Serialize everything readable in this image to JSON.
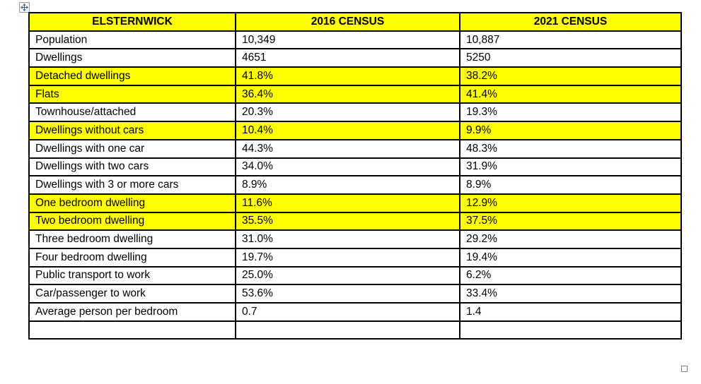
{
  "page": {
    "background_color": "#ffffff",
    "highlight_color": "#ffff00",
    "border_color": "#000000",
    "move_icon_color": "#2e5fa3"
  },
  "table": {
    "header": {
      "col1": "ELSTERNWICK",
      "col2": "2016 CENSUS",
      "col3": "2021 CENSUS"
    },
    "rows": [
      {
        "label": "Population",
        "v2016": "10,349",
        "v2021": "10,887",
        "highlighted": false
      },
      {
        "label": "Dwellings",
        "v2016": "4651",
        "v2021": "5250",
        "highlighted": false
      },
      {
        "label": "Detached dwellings",
        "v2016": "41.8%",
        "v2021": "38.2%",
        "highlighted": true
      },
      {
        "label": "Flats",
        "v2016": "36.4%",
        "v2021": "41.4%",
        "highlighted": true
      },
      {
        "label": "Townhouse/attached",
        "v2016": "20.3%",
        "v2021": "19.3%",
        "highlighted": false
      },
      {
        "label": "Dwellings without cars",
        "v2016": "10.4%",
        "v2021": "9.9%",
        "highlighted": true
      },
      {
        "label": "Dwellings with one car",
        "v2016": "44.3%",
        "v2021": "48.3%",
        "highlighted": false
      },
      {
        "label": "Dwellings with two cars",
        "v2016": "34.0%",
        "v2021": "31.9%",
        "highlighted": false
      },
      {
        "label": "Dwellings with 3 or more cars",
        "v2016": "8.9%",
        "v2021": "8.9%",
        "highlighted": false
      },
      {
        "label": "One bedroom dwelling",
        "v2016": "11.6%",
        "v2021": "12.9%",
        "highlighted": true
      },
      {
        "label": "Two bedroom dwelling",
        "v2016": "35.5%",
        "v2021": "37.5%",
        "highlighted": true
      },
      {
        "label": "Three bedroom dwelling",
        "v2016": "31.0%",
        "v2021": "29.2%",
        "highlighted": false
      },
      {
        "label": "Four bedroom dwelling",
        "v2016": "19.7%",
        "v2021": "19.4%",
        "highlighted": false
      },
      {
        "label": "Public transport to work",
        "v2016": "25.0%",
        "v2021": "6.2%",
        "highlighted": false
      },
      {
        "label": "Car/passenger to work",
        "v2016": "53.6%",
        "v2021": "33.4%",
        "highlighted": false
      },
      {
        "label": "Average person per bedroom",
        "v2016": "0.7",
        "v2021": "1.4",
        "highlighted": false
      },
      {
        "label": "",
        "v2016": "",
        "v2021": "",
        "highlighted": false
      }
    ]
  }
}
